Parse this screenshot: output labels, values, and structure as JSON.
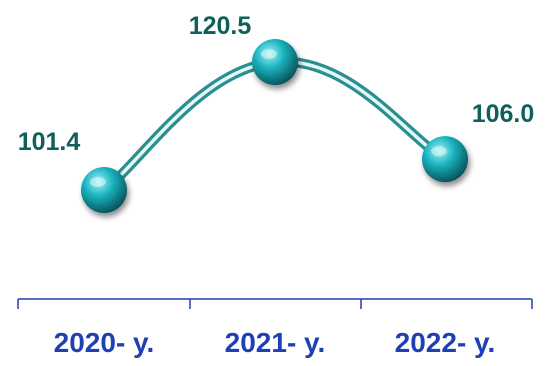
{
  "chart_data": {
    "type": "line",
    "categories": [
      "2020- y.",
      "2021- y.",
      "2022- y."
    ],
    "values": [
      101.4,
      120.5,
      106.0
    ],
    "data_labels": [
      "101.4",
      "120.5",
      "106.0"
    ],
    "title": "",
    "xlabel": "",
    "ylabel": "",
    "ylim": [
      80,
      125
    ],
    "grid": false,
    "legend": "none"
  },
  "colors": {
    "line_outer": "#2a8f8f",
    "line_inner": "#e6f7f7",
    "marker_light": "#9ff3f5",
    "marker_mid": "#1ab3bf",
    "marker_dark": "#05525a",
    "data_label": "#0f5f5a",
    "tick_label": "#1f3fb5",
    "axis": "#1f3fb5"
  }
}
